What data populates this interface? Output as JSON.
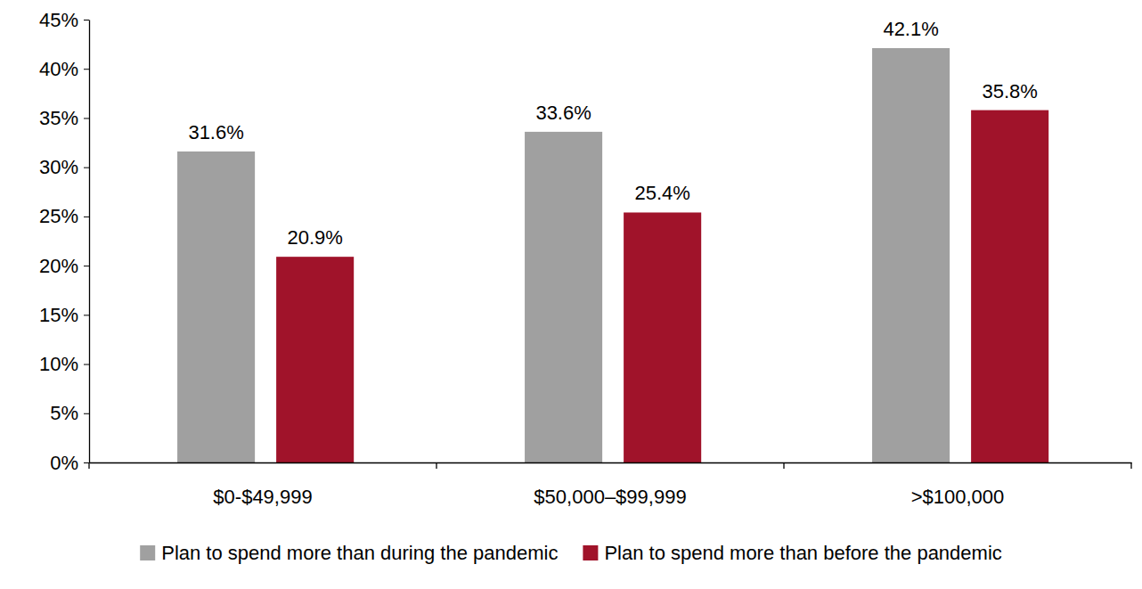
{
  "chart_data": {
    "type": "bar",
    "categories": [
      "$0-$49,999",
      "$50,000–$99,999",
      ">$100,000"
    ],
    "series": [
      {
        "name": "Plan to spend more than during the pandemic",
        "color": "#a0a0a0",
        "values": [
          31.6,
          33.6,
          42.1
        ],
        "value_labels": [
          "31.6%",
          "33.6%",
          "42.1%"
        ]
      },
      {
        "name": "Plan to spend more than before the pandemic",
        "color": "#a0132a",
        "values": [
          20.9,
          25.4,
          35.8
        ],
        "value_labels": [
          "20.9%",
          "25.4%",
          "35.8%"
        ]
      }
    ],
    "ylim": [
      0,
      45
    ],
    "yticks": [
      {
        "value": 0,
        "label": "0%"
      },
      {
        "value": 5,
        "label": "5%"
      },
      {
        "value": 10,
        "label": "10%"
      },
      {
        "value": 15,
        "label": "15%"
      },
      {
        "value": 20,
        "label": "20%"
      },
      {
        "value": 25,
        "label": "25%"
      },
      {
        "value": 30,
        "label": "30%"
      },
      {
        "value": 35,
        "label": "35%"
      },
      {
        "value": 40,
        "label": "40%"
      },
      {
        "value": 45,
        "label": "45%"
      }
    ],
    "grid": false,
    "data_labels": true,
    "legend": "bottom"
  }
}
